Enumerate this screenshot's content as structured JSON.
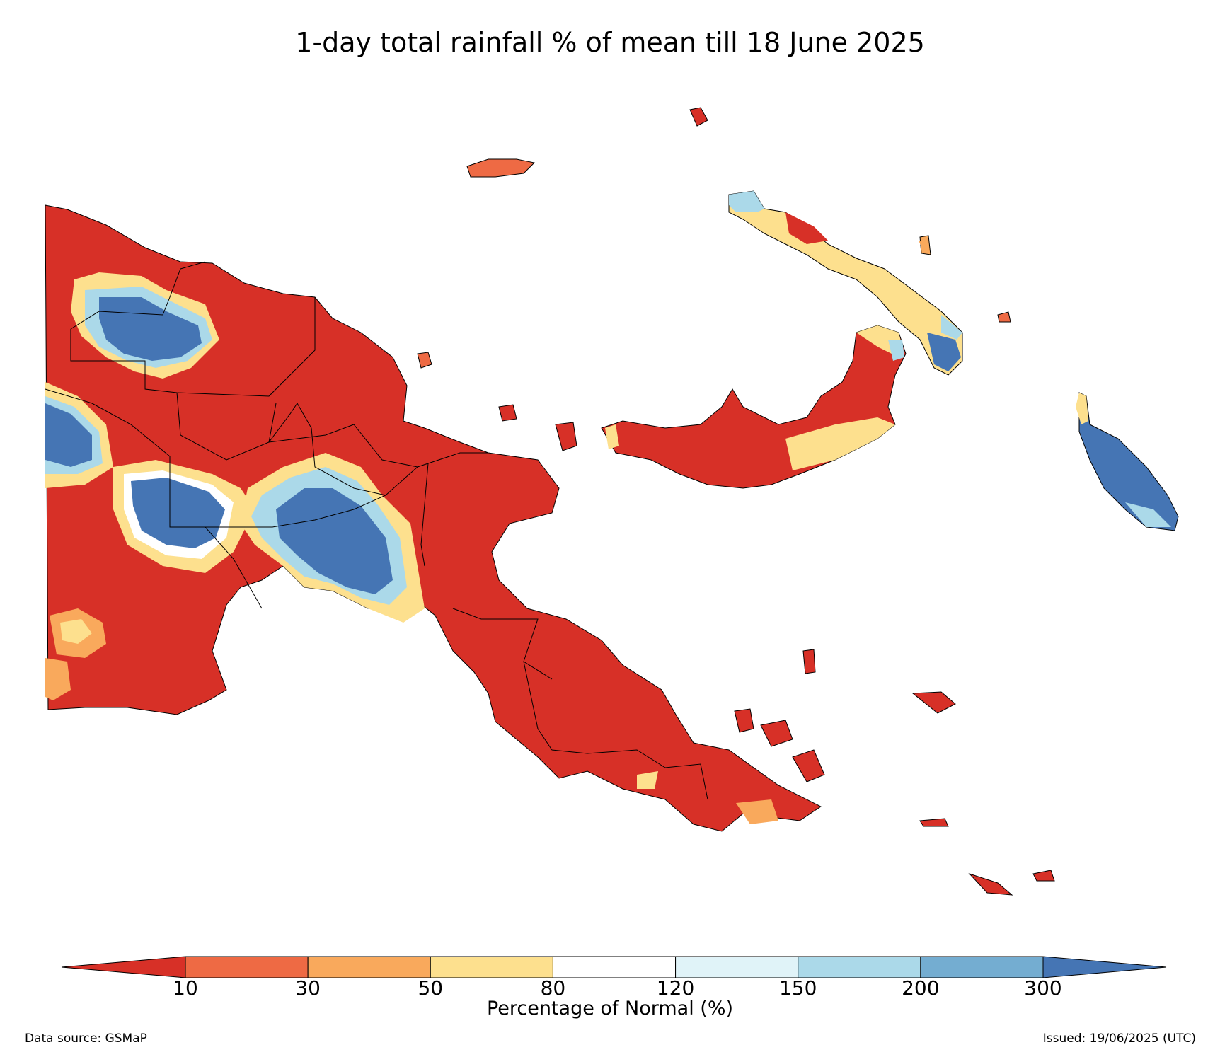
{
  "title": "1-day total rainfall % of mean till 18 June 2025",
  "colorbar": {
    "label": "Percentage of Normal (%)",
    "ticks": [
      "10",
      "30",
      "50",
      "80",
      "120",
      "150",
      "200",
      "300"
    ],
    "colors": {
      "under": "#d73027",
      "bins": [
        "#ee6a44",
        "#f9a95c",
        "#fde08e",
        "#ffffff",
        "#e0f3f8",
        "#abd9e9",
        "#74add1"
      ],
      "over": "#4575b4"
    }
  },
  "footer": {
    "source": "Data source: GSMaP",
    "issued": "Issued: 19/06/2025 (UTC)"
  },
  "map": {
    "region": "Papua New Guinea",
    "dominant_category": "<10",
    "wet_anomaly_areas": [
      "western highlands",
      "southern highlands",
      "Gulf coast",
      "Bougainville"
    ]
  }
}
